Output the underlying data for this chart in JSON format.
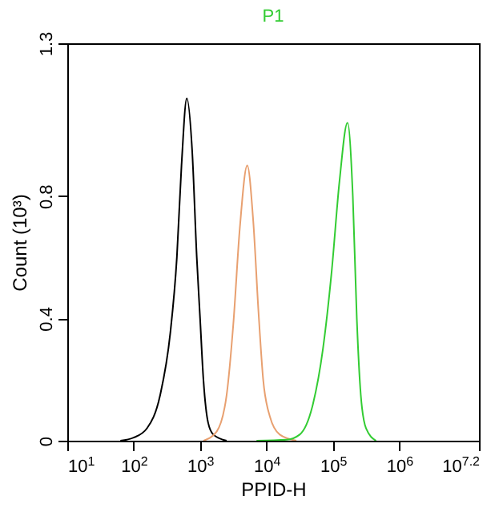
{
  "chart_data": {
    "type": "line",
    "title": "P1",
    "xlabel": "PPID-H",
    "ylabel": "Count (10³)",
    "log": "x",
    "xlim": [
      10,
      15848932
    ],
    "xticks": [
      {
        "value": 10,
        "label": "10$^{1}$"
      },
      {
        "value": 100,
        "label": "10$^{2}$"
      },
      {
        "value": 1000,
        "label": "10$^{3}$"
      },
      {
        "value": 10000,
        "label": "10$^{4}$"
      },
      {
        "value": 100000,
        "label": "10$^{5}$"
      },
      {
        "value": 1000000,
        "label": "10$^{6}$"
      },
      {
        "value": 15848932,
        "label": "10$^{7.2}$"
      }
    ],
    "ylim": [
      0,
      1.3
    ],
    "yticks": [
      0,
      0.4,
      0.8,
      1.3
    ],
    "grid": false,
    "marker": "none",
    "line_style": "solid",
    "series": [
      {
        "color": "#000000",
        "x": [
          63,
          100,
          158,
          251,
          355,
          447,
          525,
          631,
          759,
          891,
          1000,
          1122,
          1318,
          1585,
          2512
        ],
        "values": [
          0,
          0.01,
          0.04,
          0.15,
          0.35,
          0.6,
          0.9,
          1.12,
          0.95,
          0.6,
          0.4,
          0.2,
          0.06,
          0.02,
          0
        ]
      },
      {
        "color": "#e8a070",
        "x": [
          1122,
          1778,
          2512,
          3162,
          3981,
          5129,
          6310,
          7586,
          8913,
          11220,
          15850,
          28180
        ],
        "values": [
          0,
          0.03,
          0.15,
          0.38,
          0.7,
          0.9,
          0.72,
          0.42,
          0.2,
          0.08,
          0.02,
          0
        ]
      },
      {
        "color": "#33cc33",
        "x": [
          7079,
          19950,
          31620,
          50120,
          70790,
          95500,
          125900,
          166000,
          199500,
          229100,
          263000,
          316200,
          446700
        ],
        "values": [
          0,
          0.003,
          0.02,
          0.12,
          0.3,
          0.55,
          0.85,
          1.04,
          0.8,
          0.4,
          0.15,
          0.04,
          0
        ]
      }
    ]
  }
}
